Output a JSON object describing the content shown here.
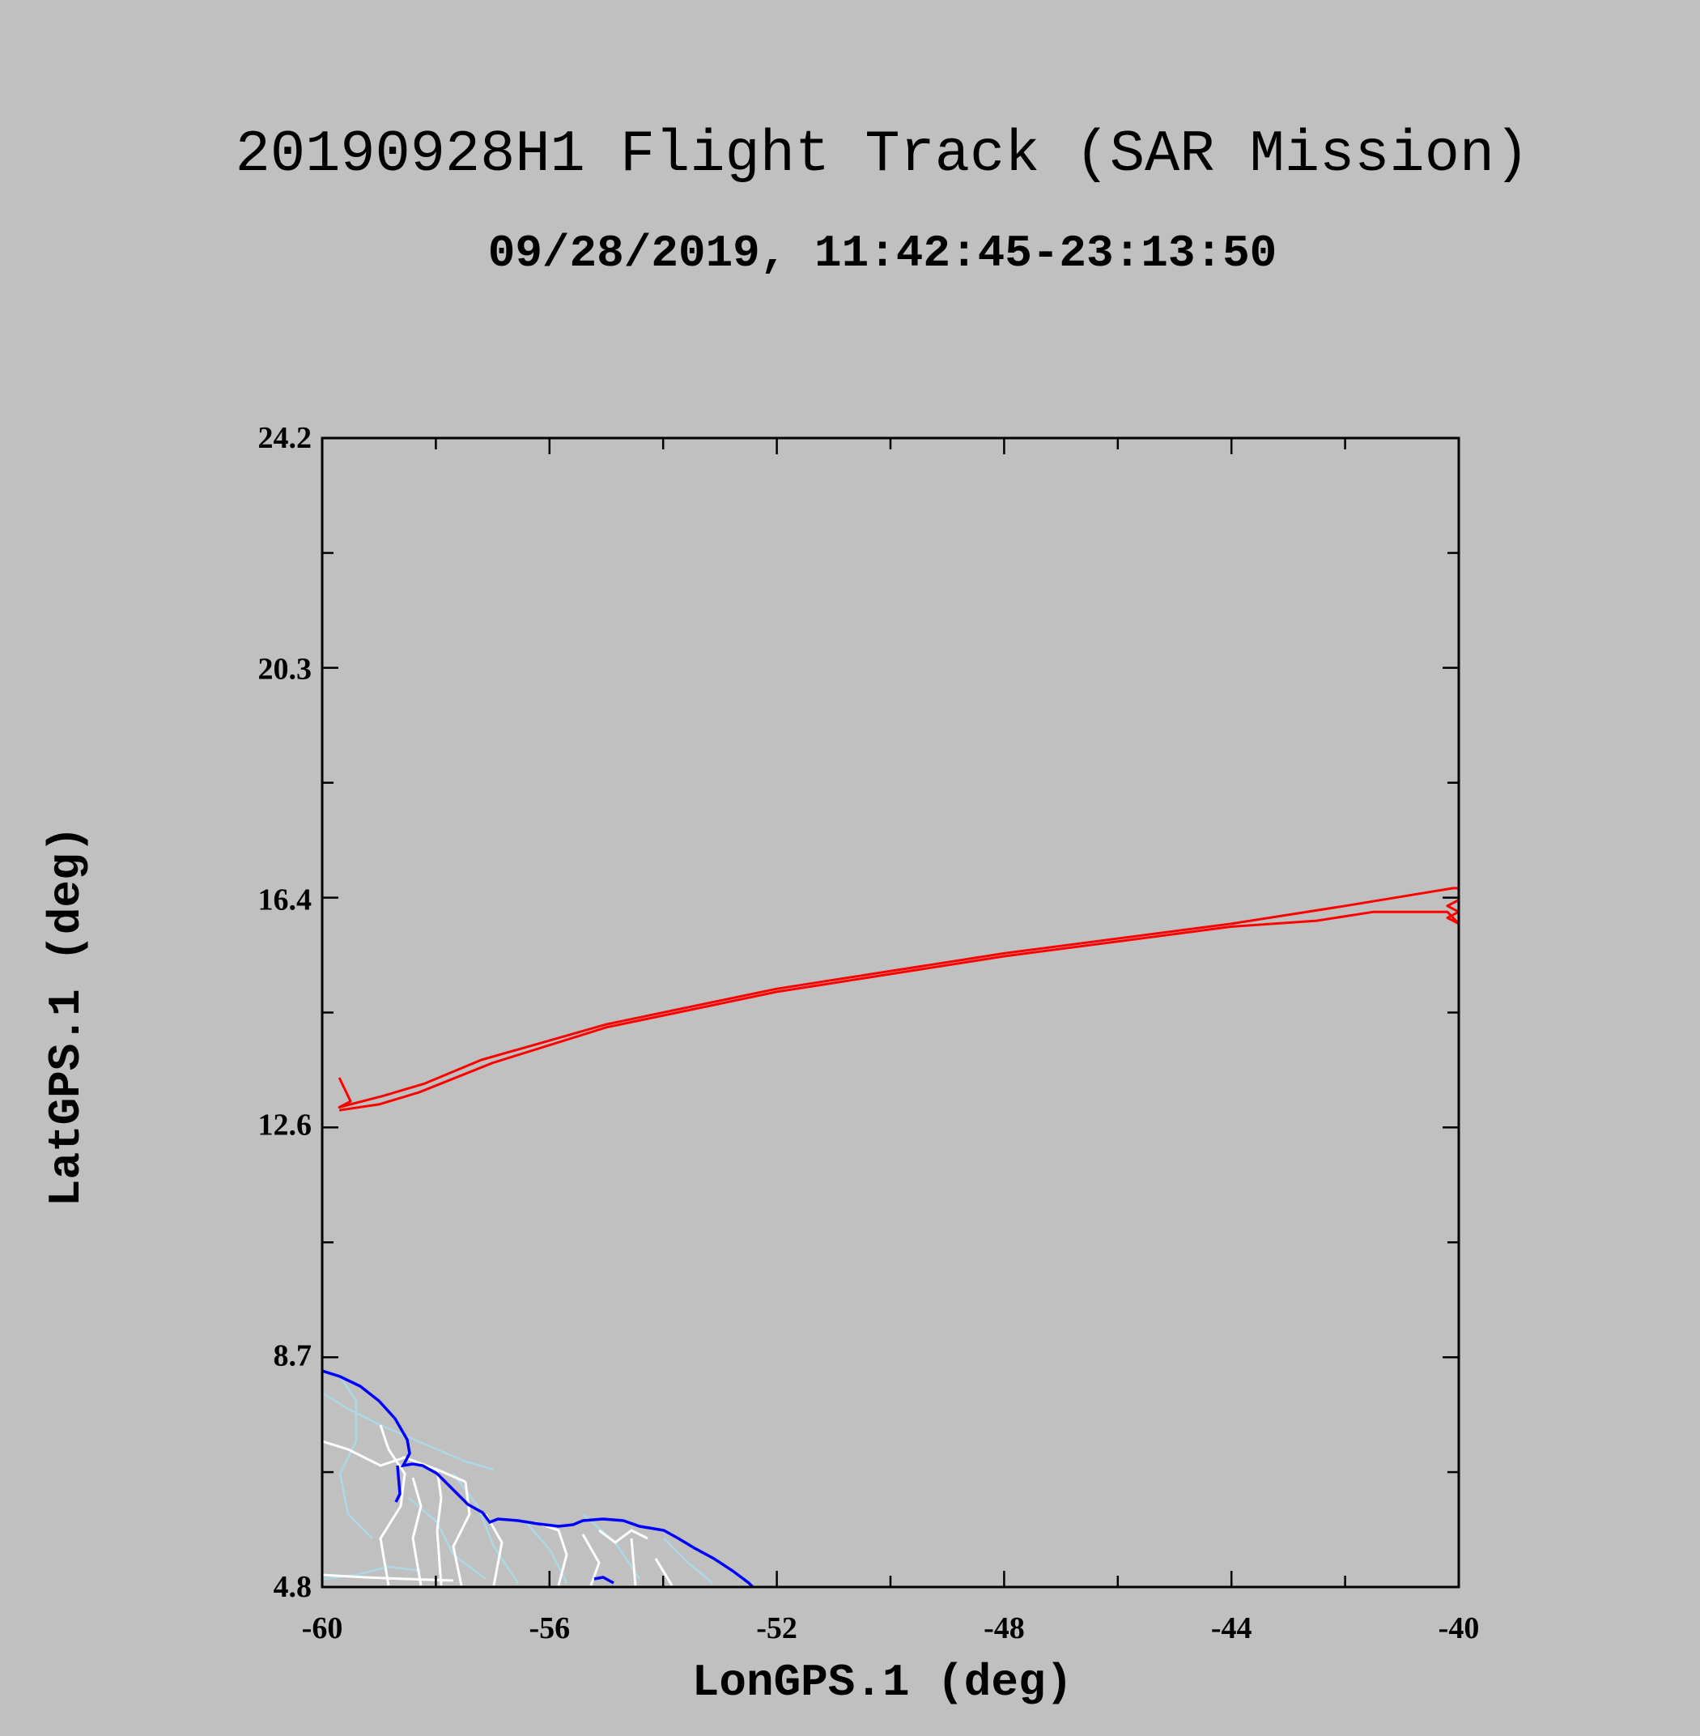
{
  "chart_data": {
    "type": "line",
    "title": "20190928H1 Flight Track (SAR Mission)",
    "subtitle": "09/28/2019, 11:42:45-23:13:50",
    "xlabel": "LonGPS.1 (deg)",
    "ylabel": "LatGPS.1 (deg)",
    "xlim": [
      -60,
      -40
    ],
    "ylim": [
      4.8,
      24.2
    ],
    "xticks": [
      -60,
      -56,
      -52,
      -48,
      -44,
      -40
    ],
    "xtick_labels": [
      "-60",
      "-56",
      "-52",
      "-48",
      "-44",
      "-40"
    ],
    "yticks": [
      4.8,
      8.7,
      12.6,
      16.4,
      20.3,
      24.2
    ],
    "ytick_labels": [
      "4.8",
      "8.7",
      "12.6",
      "16.4",
      "20.3",
      "24.2"
    ],
    "grid": false,
    "colors": {
      "track": "#ff0000",
      "coastline": "#0000ff",
      "borders": "#ffffff",
      "rivers": "#add8e6",
      "background": "#c0c0c0"
    },
    "series": [
      {
        "points": [
          [
            -59.7,
            13.4
          ],
          [
            -59.6,
            13.2
          ],
          [
            -59.5,
            13.0
          ],
          [
            -59.7,
            12.9
          ],
          [
            -58.9,
            13.1
          ],
          [
            -58.2,
            13.3
          ],
          [
            -57.2,
            13.7
          ],
          [
            -55.0,
            14.3
          ],
          [
            -52.0,
            14.9
          ],
          [
            -48.0,
            15.5
          ],
          [
            -44.0,
            16.0
          ],
          [
            -42.0,
            16.3
          ],
          [
            -40.1,
            16.6
          ],
          [
            -40.0,
            16.6
          ],
          [
            -40.0,
            16.4
          ],
          [
            -40.2,
            16.3
          ],
          [
            -40.0,
            16.2
          ],
          [
            -40.2,
            16.1
          ],
          [
            -40.0,
            16.0
          ],
          [
            -40.2,
            16.2
          ],
          [
            -41.5,
            16.2
          ],
          [
            -42.5,
            16.05
          ],
          [
            -44.0,
            15.95
          ],
          [
            -48.0,
            15.45
          ],
          [
            -52.0,
            14.85
          ],
          [
            -55.0,
            14.25
          ],
          [
            -57.0,
            13.65
          ],
          [
            -58.3,
            13.15
          ],
          [
            -59.0,
            12.95
          ],
          [
            -59.7,
            12.85
          ]
        ]
      }
    ]
  }
}
